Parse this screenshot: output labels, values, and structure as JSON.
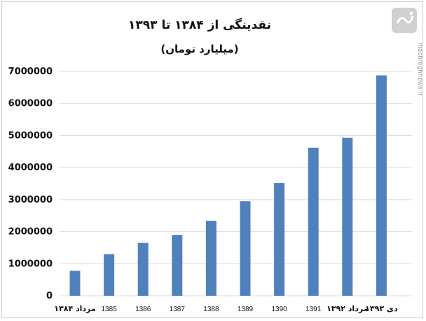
{
  "source_watermark": {
    "url_text": "mashreghnews.ir",
    "logo_color": "#c8c8c8"
  },
  "chart_data": {
    "type": "bar",
    "title": "نقدینگی از ۱۳۸۴ تا ۱۳۹۳",
    "subtitle": "(میلیارد تومان)",
    "categories": [
      "مرداد ۱۳۸۴",
      "1385",
      "1386",
      "1387",
      "1388",
      "1389",
      "1390",
      "1391",
      "مرداد ۱۳۹۲",
      "دی ۱۳۹۳"
    ],
    "values": [
      780000,
      1300000,
      1650000,
      1900000,
      2340000,
      2950000,
      3520000,
      4620000,
      4930000,
      6880000
    ],
    "ylim": [
      0,
      7000000
    ],
    "yticks": [
      0,
      1000000,
      2000000,
      3000000,
      4000000,
      5000000,
      6000000,
      7000000
    ],
    "ytick_labels": [
      "0",
      "1000000",
      "2000000",
      "3000000",
      "4000000",
      "5000000",
      "6000000",
      "7000000"
    ],
    "grid": true,
    "bar_color": "#4f81bd"
  }
}
